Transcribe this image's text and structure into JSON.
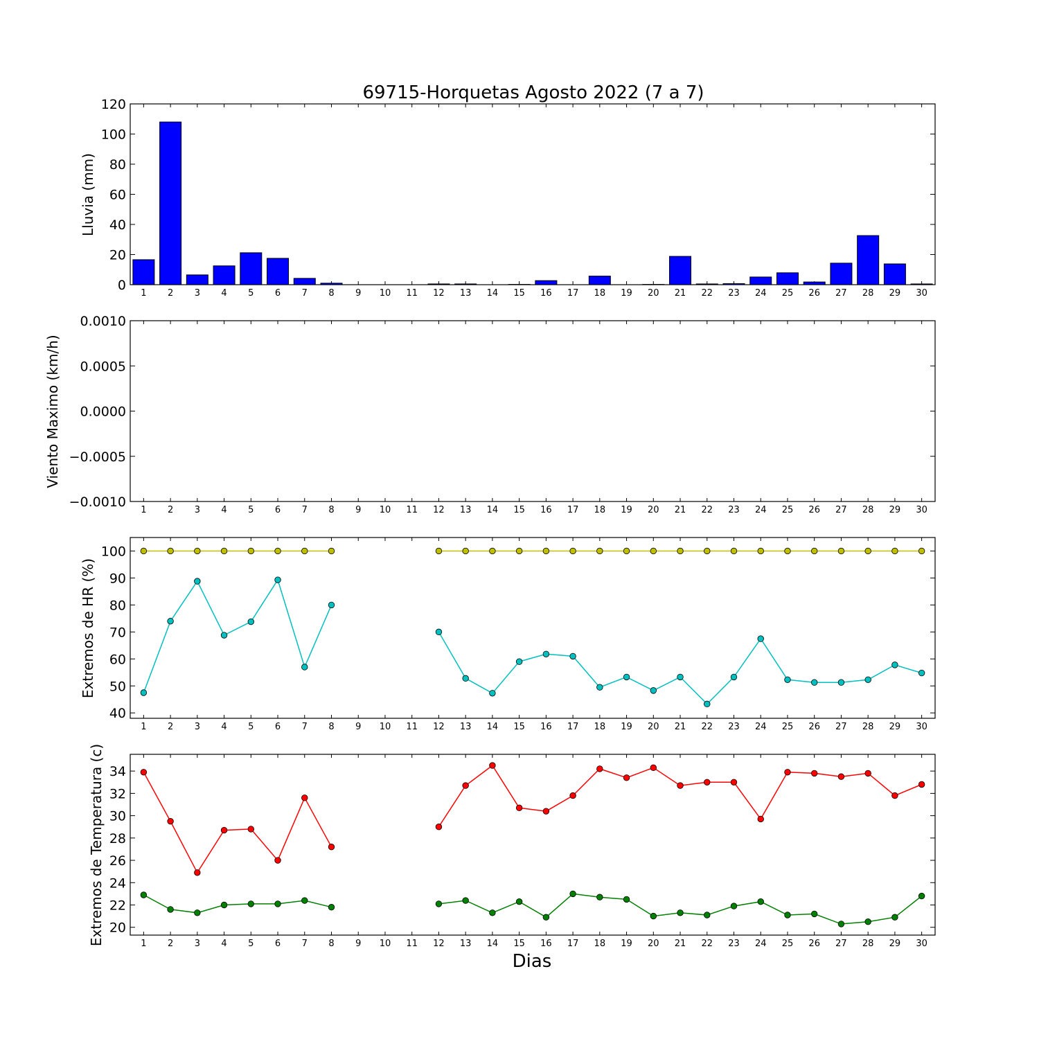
{
  "figure": {
    "title": "69715-Horquetas Agosto 2022  (7 a 7)",
    "xlabel": "Dias"
  },
  "chart_data": [
    {
      "type": "bar",
      "ylabel": "Lluvia (mm)",
      "ylim": [
        0,
        120
      ],
      "yticks": [
        "0",
        "20",
        "40",
        "60",
        "80",
        "100",
        "120"
      ],
      "categories": [
        1,
        2,
        3,
        4,
        5,
        6,
        7,
        8,
        9,
        10,
        11,
        12,
        13,
        14,
        15,
        16,
        17,
        18,
        19,
        20,
        21,
        22,
        23,
        24,
        25,
        26,
        27,
        28,
        29,
        30
      ],
      "series": [
        {
          "color": "#0000ff",
          "values": [
            16.6,
            108.0,
            6.5,
            12.5,
            21.2,
            17.5,
            4.2,
            1.0,
            0,
            0,
            0,
            0.5,
            0.5,
            0,
            0.2,
            2.7,
            0,
            5.7,
            0,
            0.2,
            18.8,
            0.5,
            0.7,
            5.1,
            7.9,
            1.8,
            14.3,
            32.6,
            13.8,
            0.5
          ]
        }
      ],
      "grid": false
    },
    {
      "type": "line",
      "ylabel": "Viento Maximo (km/h)",
      "ylim": [
        -0.001,
        0.001
      ],
      "yticks": [
        "−0.0010",
        "−0.0005",
        "0.0000",
        "0.0005",
        "0.0010"
      ],
      "categories": [
        1,
        2,
        3,
        4,
        5,
        6,
        7,
        8,
        9,
        10,
        11,
        12,
        13,
        14,
        15,
        16,
        17,
        18,
        19,
        20,
        21,
        22,
        23,
        24,
        25,
        26,
        27,
        28,
        29,
        30
      ],
      "series": [],
      "grid": false
    },
    {
      "type": "line",
      "ylabel": "Extremos de HR (%)",
      "ylim": [
        38,
        105
      ],
      "yticks": [
        "40",
        "50",
        "60",
        "70",
        "80",
        "90",
        "100"
      ],
      "categories": [
        1,
        2,
        3,
        4,
        5,
        6,
        7,
        8,
        9,
        10,
        11,
        12,
        13,
        14,
        15,
        16,
        17,
        18,
        19,
        20,
        21,
        22,
        23,
        24,
        25,
        26,
        27,
        28,
        29,
        30
      ],
      "series": [
        {
          "color": "#bfbf00",
          "values": [
            100,
            100,
            100,
            100,
            100,
            100,
            100,
            100,
            null,
            null,
            null,
            100,
            100,
            100,
            100,
            100,
            100,
            100,
            100,
            100,
            100,
            100,
            100,
            100,
            100,
            100,
            100,
            100,
            100,
            100
          ]
        },
        {
          "color": "#00bfbf",
          "values": [
            47.5,
            74,
            88.8,
            68.8,
            73.8,
            89.3,
            57,
            80,
            null,
            null,
            null,
            70,
            52.8,
            47.3,
            59,
            61.8,
            61,
            49.5,
            53.3,
            48.3,
            53.3,
            43.3,
            53.3,
            67.5,
            52.3,
            51.3,
            51.3,
            52.3,
            57.8,
            54.8
          ]
        }
      ],
      "grid": false
    },
    {
      "type": "line",
      "ylabel": "Extremos de Temperatura (c)",
      "ylim": [
        19.3,
        35.5
      ],
      "yticks": [
        "20",
        "22",
        "24",
        "26",
        "28",
        "30",
        "32",
        "34"
      ],
      "categories": [
        1,
        2,
        3,
        4,
        5,
        6,
        7,
        8,
        9,
        10,
        11,
        12,
        13,
        14,
        15,
        16,
        17,
        18,
        19,
        20,
        21,
        22,
        23,
        24,
        25,
        26,
        27,
        28,
        29,
        30
      ],
      "series": [
        {
          "color": "#ff0000",
          "values": [
            33.9,
            29.5,
            24.9,
            28.7,
            28.8,
            26.0,
            31.6,
            27.2,
            null,
            null,
            null,
            29.0,
            32.7,
            34.5,
            30.7,
            30.4,
            31.8,
            34.2,
            33.4,
            34.3,
            32.7,
            33.0,
            33.0,
            29.7,
            33.9,
            33.8,
            33.5,
            33.8,
            31.8,
            32.8
          ]
        },
        {
          "color": "#008000",
          "values": [
            22.9,
            21.6,
            21.3,
            22.0,
            22.1,
            22.1,
            22.4,
            21.8,
            null,
            null,
            null,
            22.1,
            22.4,
            21.3,
            22.3,
            20.9,
            23.0,
            22.7,
            22.5,
            21.0,
            21.3,
            21.1,
            21.9,
            22.3,
            21.1,
            21.2,
            20.3,
            20.5,
            20.9,
            22.8
          ]
        }
      ],
      "grid": false
    }
  ]
}
